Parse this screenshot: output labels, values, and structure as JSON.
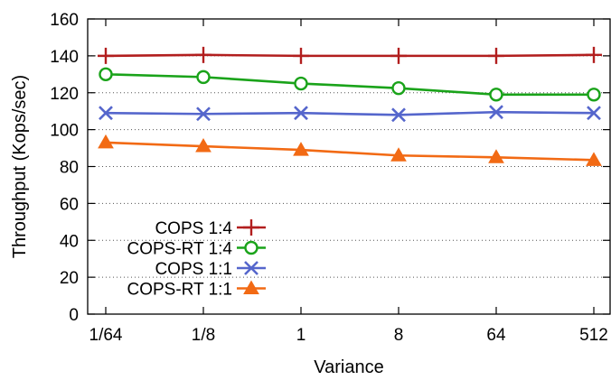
{
  "chart_data": {
    "type": "line",
    "xlabel": "Variance",
    "ylabel": "Throughput (Kops/sec)",
    "categories": [
      "1/64",
      "1/8",
      "1",
      "8",
      "64",
      "512"
    ],
    "ylim": [
      0,
      160
    ],
    "yticks": [
      0,
      20,
      40,
      60,
      80,
      100,
      120,
      140,
      160
    ],
    "grid": "horizontal dotted",
    "legend_position": "bottom-left",
    "series": [
      {
        "name": "COPS 1:4",
        "color": "#b21e1e",
        "marker": "plus",
        "values": [
          140,
          140.5,
          140,
          140,
          140,
          140.5
        ]
      },
      {
        "name": "COPS-RT 1:4",
        "color": "#1aa31a",
        "marker": "circle",
        "values": [
          130,
          128.5,
          125,
          122.5,
          119,
          119
        ]
      },
      {
        "name": "COPS 1:1",
        "color": "#5566cc",
        "marker": "x",
        "values": [
          109,
          108.5,
          109,
          108,
          109.5,
          109
        ]
      },
      {
        "name": "COPS-RT 1:1",
        "color": "#f26a14",
        "marker": "triangle",
        "values": [
          93,
          91,
          89,
          86,
          85,
          83.5
        ]
      }
    ]
  }
}
